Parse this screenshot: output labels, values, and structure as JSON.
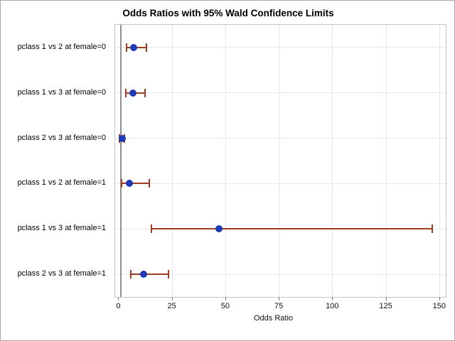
{
  "chart_data": {
    "type": "scatter",
    "subtype": "horizontal-dot-plot-with-error-bars",
    "title": "Odds Ratios with 95% Wald Confidence Limits",
    "xlabel": "Odds Ratio",
    "ylabel": "",
    "categories": [
      "pclass 1 vs 2 at female=0",
      "pclass 1 vs 3 at female=0",
      "pclass 2 vs 3 at female=0",
      "pclass 1 vs 2 at female=1",
      "pclass 1 vs 3 at female=1",
      "pclass 2 vs 3 at female=1"
    ],
    "series": [
      {
        "name": "Odds Ratio with 95% Wald Confidence Limits",
        "estimates": [
          7.0,
          6.7,
          1.6,
          5.0,
          47.0,
          11.6
        ],
        "lower": [
          3.7,
          3.5,
          0.3,
          1.4,
          15.2,
          5.5
        ],
        "upper": [
          13.0,
          12.4,
          2.8,
          14.3,
          146.6,
          23.2
        ]
      }
    ],
    "x_ticks": [
      0,
      25,
      50,
      75,
      100,
      125,
      150
    ],
    "xlim": [
      -1.65,
      152.9
    ],
    "reference_line_x": 1,
    "grid": true,
    "legend": "none",
    "colors": {
      "marker": "#1f3ab6",
      "error_bar": "#9e3b20",
      "reference_line": "#8f8f8f",
      "gridline": "#e7e7e7",
      "frame": "#c4c4c4",
      "tick": "#7d7d7d",
      "text": "#000000"
    }
  }
}
